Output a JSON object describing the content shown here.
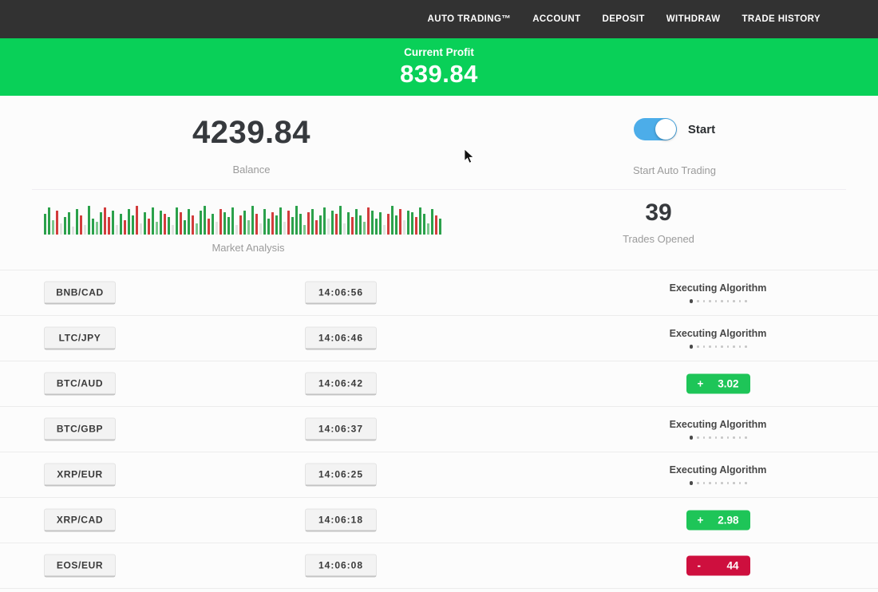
{
  "nav": {
    "items": [
      "AUTO TRADING™",
      "ACCOUNT",
      "DEPOSIT",
      "WITHDRAW",
      "TRADE HISTORY"
    ]
  },
  "banner": {
    "label": "Current Profit",
    "value": "839.84",
    "bg_color": "#09d058"
  },
  "overview": {
    "balance": {
      "value": "4239.84",
      "label": "Balance"
    },
    "auto_trading": {
      "toggle_label": "Start",
      "label": "Start Auto Trading",
      "toggle_state": "on",
      "toggle_color": "#4cade9"
    },
    "market": {
      "label": "Market Analysis"
    },
    "trades_opened": {
      "value": "39",
      "label": "Trades Opened"
    }
  },
  "executing": {
    "label": "Executing Algorithm",
    "dots_total": 10,
    "dots_active": 1
  },
  "trades": {
    "rows": [
      {
        "pair": "BNB/CAD",
        "time": "14:06:56",
        "status": "executing"
      },
      {
        "pair": "LTC/JPY",
        "time": "14:06:46",
        "status": "executing"
      },
      {
        "pair": "BTC/AUD",
        "time": "14:06:42",
        "status": "result",
        "sign": "+",
        "value": "3.02",
        "result_color": "green"
      },
      {
        "pair": "BTC/GBP",
        "time": "14:06:37",
        "status": "executing"
      },
      {
        "pair": "XRP/EUR",
        "time": "14:06:25",
        "status": "executing"
      },
      {
        "pair": "XRP/CAD",
        "time": "14:06:18",
        "status": "result",
        "sign": "+",
        "value": "2.98",
        "result_color": "green"
      },
      {
        "pair": "EOS/EUR",
        "time": "14:06:08",
        "status": "result",
        "sign": "-",
        "value": "44",
        "result_color": "red"
      }
    ]
  },
  "status_colors": {
    "profit_green": "#1ec558",
    "loss_red": "#ce0f3e"
  },
  "chart_data": {
    "type": "bar",
    "title": "Market Analysis",
    "palette": {
      "g": "#2ba14b",
      "r": "#d23c3c",
      "l": "#7cc78d",
      "p": "#dfe3df"
    },
    "bars": [
      [
        26,
        "g"
      ],
      [
        34,
        "g"
      ],
      [
        18,
        "l"
      ],
      [
        30,
        "r"
      ],
      [
        14,
        "p"
      ],
      [
        22,
        "g"
      ],
      [
        28,
        "g"
      ],
      [
        10,
        "p"
      ],
      [
        32,
        "g"
      ],
      [
        24,
        "r"
      ],
      [
        12,
        "p"
      ],
      [
        36,
        "g"
      ],
      [
        20,
        "g"
      ],
      [
        16,
        "l"
      ],
      [
        28,
        "g"
      ],
      [
        34,
        "r"
      ],
      [
        22,
        "r"
      ],
      [
        30,
        "g"
      ],
      [
        12,
        "p"
      ],
      [
        26,
        "g"
      ],
      [
        18,
        "r"
      ],
      [
        32,
        "g"
      ],
      [
        24,
        "g"
      ],
      [
        36,
        "r"
      ],
      [
        14,
        "p"
      ],
      [
        28,
        "g"
      ],
      [
        20,
        "r"
      ],
      [
        34,
        "g"
      ],
      [
        16,
        "l"
      ],
      [
        30,
        "g"
      ],
      [
        26,
        "r"
      ],
      [
        22,
        "g"
      ],
      [
        12,
        "p"
      ],
      [
        34,
        "g"
      ],
      [
        28,
        "r"
      ],
      [
        18,
        "g"
      ],
      [
        32,
        "g"
      ],
      [
        24,
        "r"
      ],
      [
        14,
        "l"
      ],
      [
        30,
        "g"
      ],
      [
        36,
        "g"
      ],
      [
        20,
        "r"
      ],
      [
        26,
        "g"
      ],
      [
        16,
        "p"
      ],
      [
        32,
        "r"
      ],
      [
        28,
        "g"
      ],
      [
        22,
        "g"
      ],
      [
        34,
        "g"
      ],
      [
        12,
        "p"
      ],
      [
        24,
        "r"
      ],
      [
        30,
        "g"
      ],
      [
        18,
        "l"
      ],
      [
        36,
        "g"
      ],
      [
        26,
        "r"
      ],
      [
        14,
        "p"
      ],
      [
        32,
        "g"
      ],
      [
        20,
        "g"
      ],
      [
        28,
        "r"
      ],
      [
        24,
        "g"
      ],
      [
        34,
        "g"
      ],
      [
        16,
        "p"
      ],
      [
        30,
        "r"
      ],
      [
        22,
        "g"
      ],
      [
        36,
        "g"
      ],
      [
        26,
        "g"
      ],
      [
        12,
        "l"
      ],
      [
        28,
        "r"
      ],
      [
        32,
        "g"
      ],
      [
        18,
        "r"
      ],
      [
        24,
        "g"
      ],
      [
        34,
        "g"
      ],
      [
        20,
        "p"
      ],
      [
        30,
        "g"
      ],
      [
        26,
        "r"
      ],
      [
        36,
        "g"
      ],
      [
        14,
        "p"
      ],
      [
        28,
        "g"
      ],
      [
        22,
        "r"
      ],
      [
        32,
        "g"
      ],
      [
        24,
        "g"
      ],
      [
        16,
        "l"
      ],
      [
        34,
        "r"
      ],
      [
        30,
        "g"
      ],
      [
        20,
        "g"
      ],
      [
        28,
        "g"
      ],
      [
        12,
        "p"
      ],
      [
        26,
        "r"
      ],
      [
        36,
        "g"
      ],
      [
        24,
        "g"
      ],
      [
        32,
        "r"
      ],
      [
        18,
        "p"
      ],
      [
        30,
        "g"
      ],
      [
        28,
        "g"
      ],
      [
        22,
        "r"
      ],
      [
        34,
        "g"
      ],
      [
        26,
        "g"
      ],
      [
        14,
        "l"
      ],
      [
        32,
        "g"
      ],
      [
        24,
        "r"
      ],
      [
        20,
        "g"
      ]
    ]
  }
}
